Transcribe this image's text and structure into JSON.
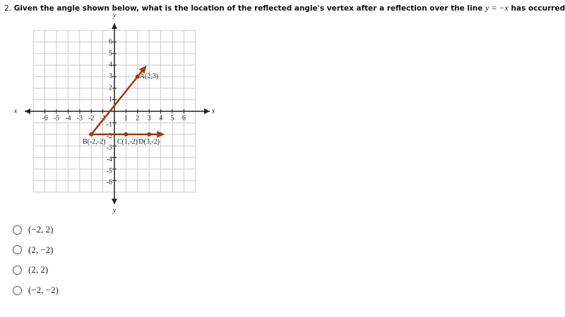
{
  "question": {
    "number": "2.",
    "text_before": "Given the angle shown below, what is the location of the reflected angle's vertex after a reflection over the line",
    "math": "y = −x",
    "text_after": "has occurred?"
  },
  "graph": {
    "x_label": "x",
    "y_label": "y",
    "xlim": [
      -7,
      7
    ],
    "ylim": [
      -7,
      7
    ],
    "xticks": [
      -6,
      -5,
      -4,
      -3,
      -2,
      -1,
      1,
      2,
      3,
      4,
      5,
      6
    ],
    "yticks": [
      -6,
      -5,
      -4,
      -3,
      -2,
      -1,
      1,
      2,
      3,
      4,
      5,
      6
    ],
    "vertex": {
      "label": "B(-2,-2)",
      "x": -2,
      "y": -2
    },
    "points": [
      {
        "label": "A(2,3)",
        "x": 2,
        "y": 3
      },
      {
        "label": "C(1,-2)",
        "x": 1,
        "y": -2
      },
      {
        "label": "D(3,-2)",
        "x": 3,
        "y": -2
      }
    ],
    "color": "#a33a0c"
  },
  "options": [
    "(−2, 2)",
    "(2, −2)",
    "(2, 2)",
    "(−2, −2)"
  ]
}
